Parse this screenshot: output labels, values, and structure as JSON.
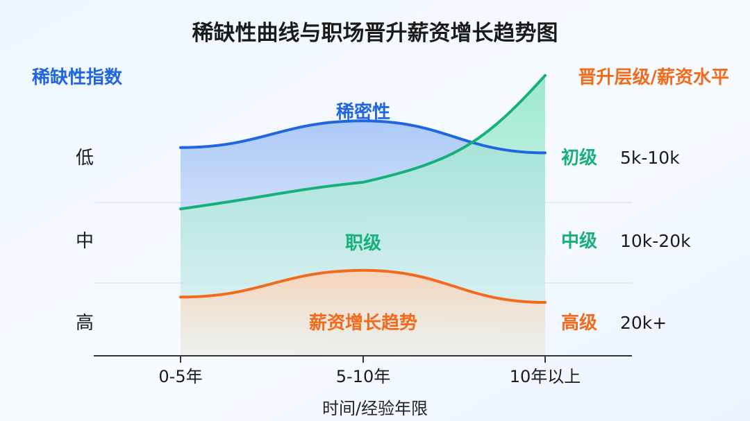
{
  "chart_data": {
    "type": "line",
    "title": "稀缺性曲线与职场晋升薪资增长趋势图",
    "left_axis_title": "稀缺性指数",
    "right_axis_title": "晋升层级/薪资水平",
    "xlabel": "时间/经验年限",
    "categories": [
      "0-5年",
      "5-10年",
      "10年以上"
    ],
    "left_ticks": [
      "低",
      "中",
      "高"
    ],
    "right_level_ticks": [
      "初级",
      "中级",
      "高级"
    ],
    "right_salary_ticks": [
      "5k-10k",
      "10k-20k",
      "20k+"
    ],
    "grid": true,
    "series": [
      {
        "name": "稀密性",
        "color": "#1f66e0",
        "fill": "#b9d1f7",
        "values": [
          0.78,
          0.88,
          0.76
        ]
      },
      {
        "name": "职级",
        "color": "#18b07a",
        "fill": "#bfeedd",
        "values": [
          0.55,
          0.65,
          1.05
        ]
      },
      {
        "name": "薪资增长趋势",
        "color": "#f26a1b",
        "fill": "#fbe1d0",
        "values": [
          0.22,
          0.32,
          0.2
        ]
      }
    ]
  }
}
